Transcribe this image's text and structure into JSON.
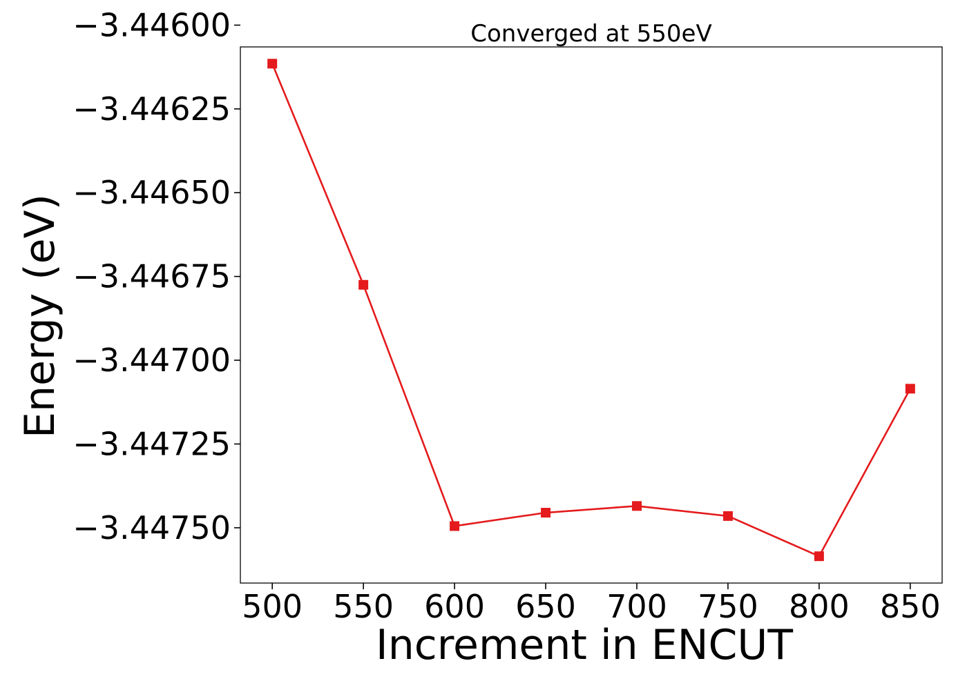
{
  "chart_data": {
    "type": "line",
    "title": "Converged at 550eV",
    "xlabel": "Increment in ENCUT",
    "ylabel": "Energy (eV)",
    "x": [
      500,
      550,
      600,
      650,
      700,
      750,
      800,
      850
    ],
    "series": [
      {
        "values": [
          -3.446115,
          -3.446775,
          -3.447495,
          -3.447455,
          -3.447435,
          -3.447465,
          -3.447585,
          -3.447085
        ],
        "color": "#e41a1c",
        "marker": "square"
      }
    ],
    "xticks": [
      500,
      550,
      600,
      650,
      700,
      750,
      800,
      850
    ],
    "xtick_labels": [
      "500",
      "550",
      "600",
      "650",
      "700",
      "750",
      "800",
      "850"
    ],
    "yticks": [
      -3.446,
      -3.44625,
      -3.4465,
      -3.44675,
      -3.447,
      -3.44725,
      -3.4475
    ],
    "ytick_labels": [
      "−3.44600",
      "−3.44625",
      "−3.44650",
      "−3.44675",
      "−3.44700",
      "−3.44725",
      "−3.44750"
    ],
    "xlim": [
      482.5,
      867.5
    ],
    "ylim": [
      -3.447665,
      -3.446065
    ],
    "grid": false,
    "legend": "none"
  }
}
